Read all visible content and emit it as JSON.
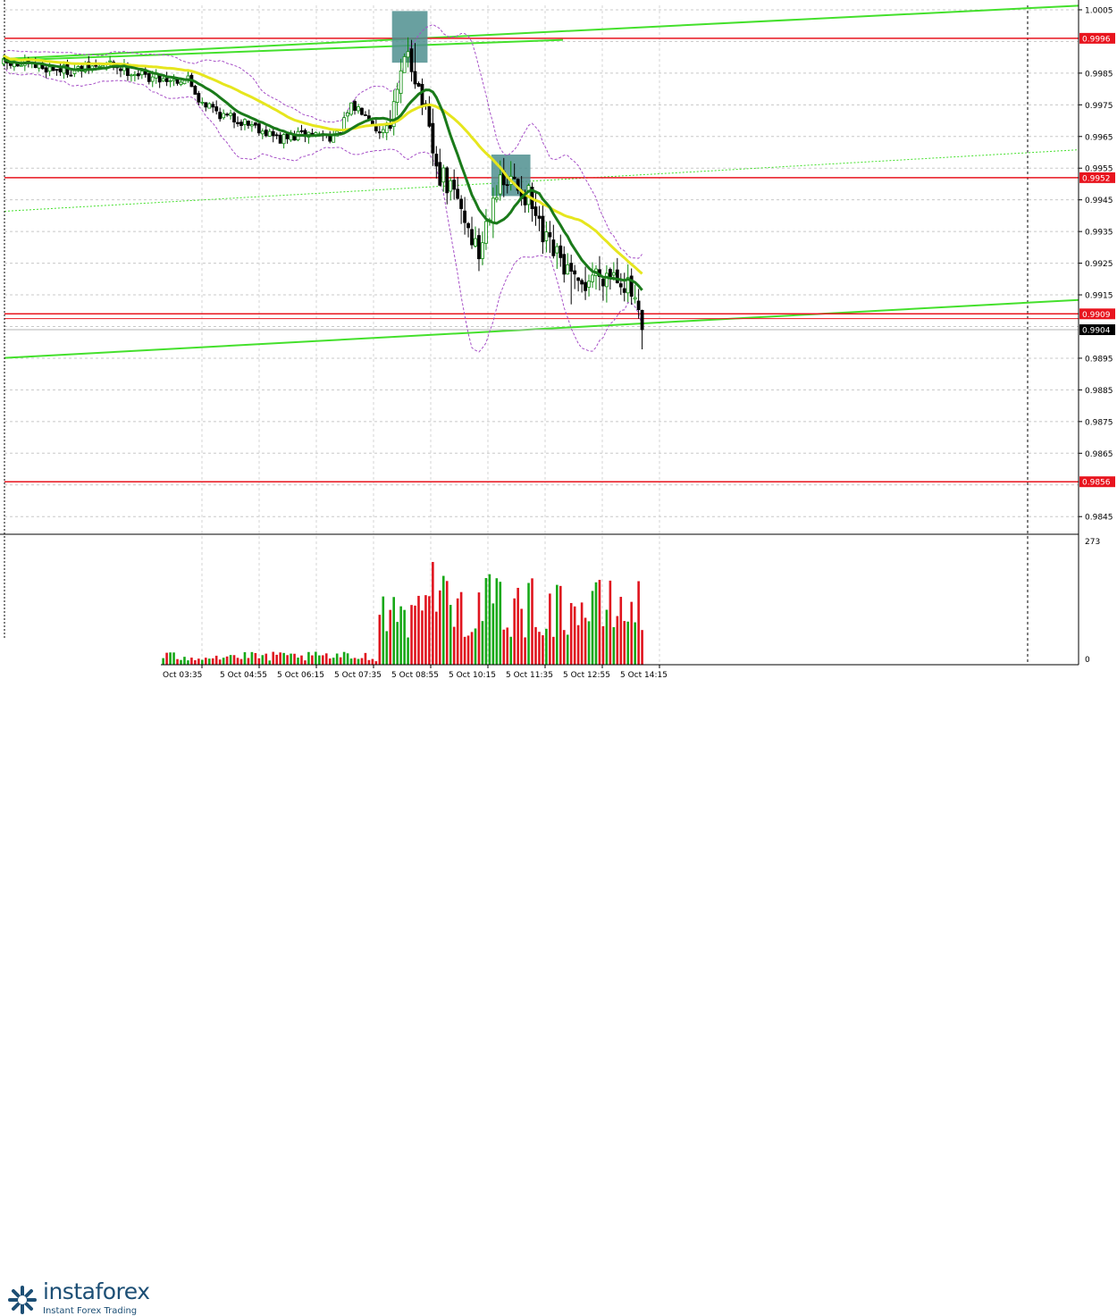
{
  "brand": {
    "name": "instaforex",
    "tagline": "Instant Forex Trading"
  },
  "chart_data": {
    "type": "candlestick",
    "price_axis": {
      "ticks": [
        "1.0005",
        "0.9985",
        "0.9975",
        "0.9965",
        "0.9955",
        "0.9945",
        "0.9935",
        "0.9925",
        "0.9915",
        "0.9895",
        "0.9885",
        "0.9875",
        "0.9865",
        "0.9845"
      ],
      "range": [
        0.98397,
        1.00064
      ]
    },
    "time_axis": {
      "labels": [
        "Oct 03:35",
        "5 Oct 04:55",
        "5 Oct 06:15",
        "5 Oct 07:35",
        "5 Oct 08:55",
        "5 Oct 10:15",
        "5 Oct 11:35",
        "5 Oct 12:55",
        "5 Oct 14:15"
      ]
    },
    "horizontal_levels": [
      {
        "label": "0.9996",
        "value": 0.9996,
        "color": "#e8141e"
      },
      {
        "label": "0.9952",
        "value": 0.9952,
        "color": "#e8141e"
      },
      {
        "label": "0.9909",
        "value": 0.9909,
        "color": "#e8141e"
      },
      {
        "label": "0.9856",
        "value": 0.9856,
        "color": "#e8141e"
      }
    ],
    "current_price": {
      "label": "0.9904",
      "value": 0.9904
    },
    "volume_axis": {
      "max_label": "273",
      "min_label": "0",
      "max": 273
    },
    "trend_lines": [
      {
        "color": "#44e02c",
        "style": "solid",
        "points": [
          [
            0.0,
            0.99895
          ],
          [
            1.0,
            1.00063
          ]
        ]
      },
      {
        "color": "#44e02c",
        "style": "solid",
        "points": [
          [
            0.0,
            0.9989
          ],
          [
            0.52,
            0.99955
          ]
        ]
      },
      {
        "color": "#44e02c",
        "style": "solid",
        "points": [
          [
            0.0,
            0.98951
          ],
          [
            1.0,
            0.99134
          ]
        ]
      },
      {
        "color": "#44e02c",
        "style": "dotted",
        "points": [
          [
            0.0,
            0.99414
          ],
          [
            1.0,
            0.99608
          ]
        ]
      }
    ],
    "signal_zones": [
      {
        "color": "#4f8f8f",
        "from_bar": 110,
        "to_bar": 119,
        "high": 1.00046,
        "low": 0.99883
      },
      {
        "color": "#4f8f8f",
        "from_bar": 138,
        "to_bar": 148,
        "high": 0.99593,
        "low": 0.99462
      }
    ],
    "series": [
      {
        "name": "",
        "type": "candlestick",
        "up_color": "#0a8a0a",
        "down_color": "#000000"
      },
      {
        "name": "",
        "type": "line",
        "color": "#e6e61e"
      },
      {
        "name": "",
        "type": "line",
        "color": "#1a7a1a"
      },
      {
        "name": "",
        "type": "bands",
        "color": "#a64fc7"
      }
    ],
    "grid": true,
    "volume_colors": {
      "up": "#17a817",
      "down": "#e0141e"
    }
  }
}
